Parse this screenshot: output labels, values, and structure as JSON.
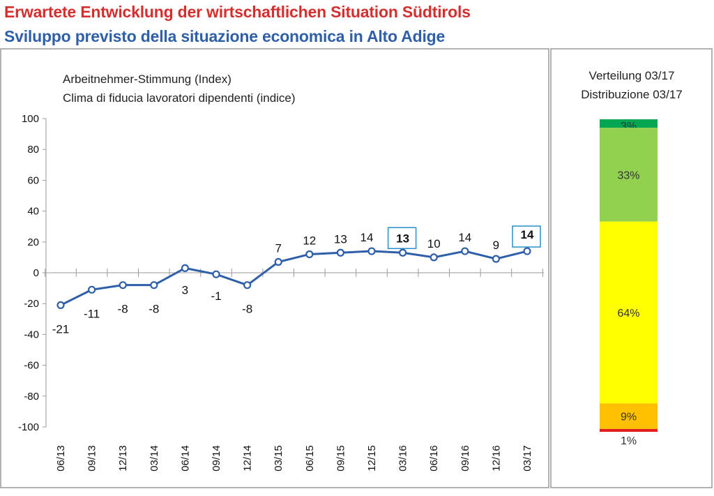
{
  "header": {
    "title_de": "Erwartete Entwicklung der wirtschaftlichen Situation Südtirols",
    "title_it": "Sviluppo previsto della situazione economica in Alto Adige"
  },
  "chart_data": [
    {
      "type": "line",
      "subtitle_de": "Arbeitnehmer-Stimmung (Index)",
      "subtitle_it": "Clima di fiducia lavoratori dipendenti (indice)",
      "categories": [
        "06/13",
        "09/13",
        "12/13",
        "03/14",
        "06/14",
        "09/14",
        "12/14",
        "03/15",
        "06/15",
        "09/15",
        "12/15",
        "03/16",
        "06/16",
        "09/16",
        "12/16",
        "03/17"
      ],
      "series": [
        {
          "name": "",
          "values": [
            -21,
            -11,
            -8,
            -8,
            3,
            -1,
            -8,
            7,
            12,
            13,
            14,
            13,
            10,
            14,
            9,
            14
          ]
        }
      ],
      "data_labels": [
        "-21",
        "-11",
        "-8",
        "-8",
        "3",
        "-1",
        "-8",
        "7",
        "12",
        "13",
        "14",
        "13",
        "10",
        "14",
        "9",
        "14"
      ],
      "highlighted_points": [
        11,
        15
      ],
      "yticks": [
        "100",
        "80",
        "60",
        "40",
        "20",
        "0",
        "-20",
        "-40",
        "-60",
        "-80",
        "-100"
      ],
      "ylim": [
        -100,
        100
      ],
      "line_color": "#2e5fa8",
      "grid": false
    },
    {
      "type": "bar",
      "stacked": true,
      "title_de": "Verteilung 03/17",
      "title_it": "Distribuzione 03/17",
      "segments": [
        {
          "label": "3%",
          "value": 3,
          "color": "#00a651"
        },
        {
          "label": "33%",
          "value": 33,
          "color": "#92d050"
        },
        {
          "label": "64%",
          "value": 64,
          "color": "#ffff00"
        },
        {
          "label": "9%",
          "value": 9,
          "color": "#ffc000"
        },
        {
          "label": "1%",
          "value": 1,
          "color": "#e02020"
        }
      ]
    }
  ]
}
